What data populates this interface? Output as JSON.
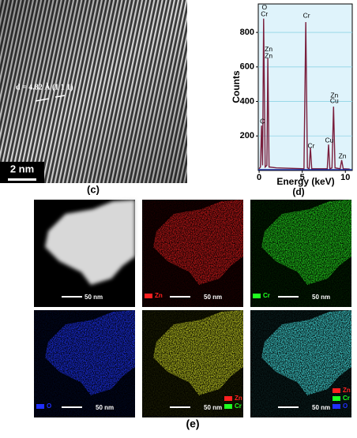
{
  "panel_c": {
    "label": "(c)",
    "annotation": "d = 4.82 Å  (1 1 1)",
    "scale_bar": "2 nm"
  },
  "chart_data": {
    "type": "line",
    "label": "(d)",
    "xlabel": "Energy (keV)",
    "ylabel": "Counts",
    "x": [
      0,
      0.15,
      0.28,
      0.4,
      0.52,
      0.7,
      0.9,
      1.01,
      1.15,
      2,
      5.2,
      5.41,
      5.6,
      5.8,
      5.95,
      6.1,
      7.9,
      8.05,
      8.2,
      8.45,
      8.63,
      8.8,
      9.4,
      9.57,
      9.75,
      10.5
    ],
    "series": [
      {
        "color": "#7a1f3d",
        "values": [
          10,
          20,
          260,
          30,
          880,
          20,
          30,
          650,
          20,
          15,
          10,
          860,
          15,
          10,
          130,
          10,
          10,
          150,
          10,
          15,
          370,
          15,
          10,
          60,
          10,
          8
        ]
      }
    ],
    "xlim": [
      -0.1,
      10.8
    ],
    "ylim": [
      0,
      965
    ],
    "xticks": [
      0,
      5,
      10
    ],
    "yticks": [
      200,
      400,
      600,
      800
    ],
    "grid": true,
    "background": "#dff3fb",
    "annotations": [
      {
        "text": "O",
        "x": 0.52,
        "y": 943
      },
      {
        "text": "Cr",
        "x": 0.52,
        "y": 905
      },
      {
        "text": "C",
        "x": 0.28,
        "y": 283
      },
      {
        "text": "Zn",
        "x": 1.01,
        "y": 700
      },
      {
        "text": "Zn",
        "x": 1.01,
        "y": 663
      },
      {
        "text": "Cr",
        "x": 5.41,
        "y": 896
      },
      {
        "text": "Cr",
        "x": 5.95,
        "y": 141
      },
      {
        "text": "Cu",
        "x": 8.05,
        "y": 173
      },
      {
        "text": "Zn",
        "x": 8.63,
        "y": 434
      },
      {
        "text": "Cu",
        "x": 8.63,
        "y": 402
      },
      {
        "text": "Zn",
        "x": 9.57,
        "y": 81
      }
    ]
  },
  "panel_e": {
    "label": "(e)",
    "maps": [
      {
        "color": "#d8d8d8",
        "scale_bar": "50 nm",
        "legend": []
      },
      {
        "color": "#c01818",
        "scale_bar": "50 nm",
        "legend": [
          {
            "name": "Zn",
            "color": "#ff2020"
          }
        ]
      },
      {
        "color": "#22c81c",
        "scale_bar": "50 nm",
        "legend": [
          {
            "name": "Cr",
            "color": "#20ff20"
          }
        ]
      },
      {
        "color": "#1a2ee0",
        "scale_bar": "50 nm",
        "legend": [
          {
            "name": "O",
            "color": "#2030ff"
          }
        ]
      },
      {
        "color": "#b8c020",
        "scale_bar": "50 nm",
        "legend": [
          {
            "name": "Zn",
            "color": "#ff2020"
          },
          {
            "name": "Cr",
            "color": "#20ff20"
          }
        ]
      },
      {
        "color": "#40d0d0",
        "scale_bar": "50 nm",
        "legend": [
          {
            "name": "Zn",
            "color": "#ff2020"
          },
          {
            "name": "Cr",
            "color": "#20ff20"
          },
          {
            "name": "O",
            "color": "#2030ff"
          }
        ]
      }
    ]
  }
}
